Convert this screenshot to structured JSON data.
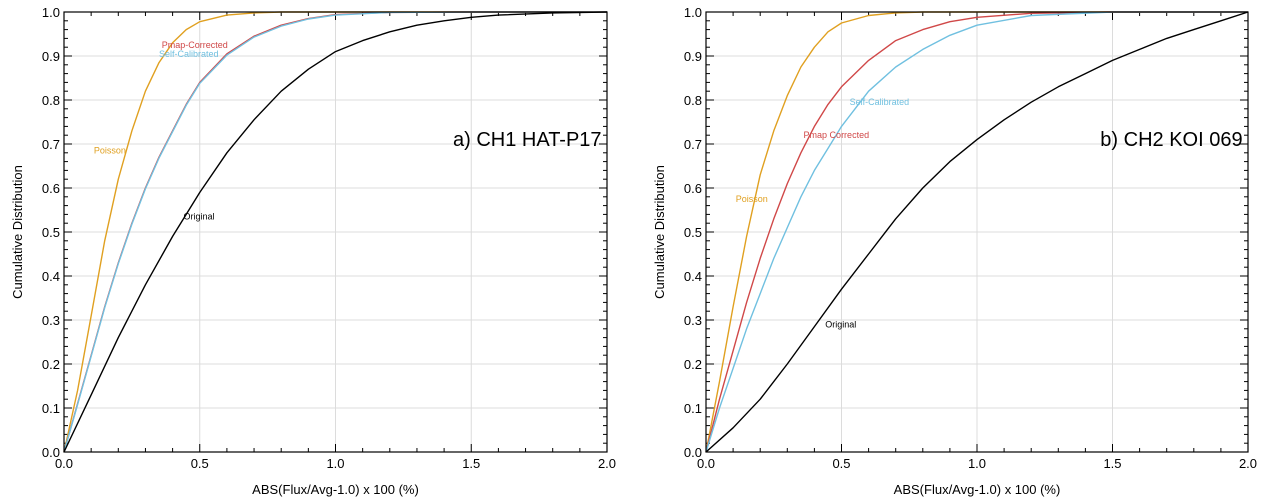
{
  "chart_data": [
    {
      "type": "line",
      "panel_label": "a) CH1 HAT-P17",
      "xlabel": "ABS(Flux/Avg-1.0) x 100 (%)",
      "ylabel": "Cumulative Distribution",
      "xlim": [
        0.0,
        2.0
      ],
      "ylim": [
        0.0,
        1.0
      ],
      "xticks": [
        "0.0",
        "0.5",
        "1.0",
        "1.5",
        "2.0"
      ],
      "yticks": [
        "0.0",
        "0.1",
        "0.2",
        "0.3",
        "0.4",
        "0.5",
        "0.6",
        "0.7",
        "0.8",
        "0.9",
        "1.0"
      ],
      "grid": true,
      "series": [
        {
          "name": "Poisson",
          "color": "#e0a020",
          "x": [
            0,
            0.05,
            0.1,
            0.15,
            0.2,
            0.25,
            0.3,
            0.35,
            0.4,
            0.45,
            0.5,
            0.6,
            0.7,
            0.8,
            0.9,
            1.0,
            2.0
          ],
          "y": [
            0,
            0.14,
            0.31,
            0.48,
            0.62,
            0.73,
            0.82,
            0.885,
            0.93,
            0.96,
            0.978,
            0.993,
            0.998,
            1.0,
            1.0,
            1.0,
            1.0
          ],
          "label_at": [
            0.11,
            0.685
          ]
        },
        {
          "name": "Pmap-Corrected",
          "color": "#d04848",
          "x": [
            0,
            0.05,
            0.1,
            0.15,
            0.2,
            0.25,
            0.3,
            0.35,
            0.4,
            0.45,
            0.5,
            0.6,
            0.7,
            0.8,
            0.9,
            1.0,
            1.2,
            1.5,
            2.0
          ],
          "y": [
            0,
            0.11,
            0.22,
            0.33,
            0.43,
            0.52,
            0.6,
            0.67,
            0.73,
            0.79,
            0.84,
            0.905,
            0.945,
            0.97,
            0.985,
            0.994,
            0.999,
            1.0,
            1.0
          ],
          "label_at": [
            0.36,
            0.925
          ]
        },
        {
          "name": "Self-Calibrated",
          "color": "#70c0e0",
          "x": [
            0,
            0.05,
            0.1,
            0.15,
            0.2,
            0.25,
            0.3,
            0.35,
            0.4,
            0.45,
            0.5,
            0.6,
            0.7,
            0.8,
            0.9,
            1.0,
            1.2,
            1.5,
            2.0
          ],
          "y": [
            0,
            0.108,
            0.218,
            0.328,
            0.428,
            0.518,
            0.598,
            0.668,
            0.728,
            0.788,
            0.838,
            0.902,
            0.943,
            0.968,
            0.984,
            0.993,
            0.999,
            1.0,
            1.0
          ],
          "label_at": [
            0.35,
            0.905
          ]
        },
        {
          "name": "Original",
          "color": "#000000",
          "x": [
            0,
            0.1,
            0.2,
            0.3,
            0.4,
            0.5,
            0.6,
            0.7,
            0.8,
            0.9,
            1.0,
            1.1,
            1.2,
            1.3,
            1.4,
            1.5,
            1.6,
            1.8,
            2.0
          ],
          "y": [
            0,
            0.13,
            0.26,
            0.38,
            0.49,
            0.59,
            0.68,
            0.755,
            0.82,
            0.87,
            0.91,
            0.935,
            0.955,
            0.97,
            0.98,
            0.988,
            0.993,
            0.998,
            1.0
          ],
          "label_at": [
            0.44,
            0.535
          ]
        }
      ]
    },
    {
      "type": "line",
      "panel_label": "b) CH2 KOI 069",
      "xlabel": "ABS(Flux/Avg-1.0) x 100 (%)",
      "ylabel": "Cumulative Distribution",
      "xlim": [
        0.0,
        2.0
      ],
      "ylim": [
        0.0,
        1.0
      ],
      "xticks": [
        "0.0",
        "0.5",
        "1.0",
        "1.5",
        "2.0"
      ],
      "yticks": [
        "0.0",
        "0.1",
        "0.2",
        "0.3",
        "0.4",
        "0.5",
        "0.6",
        "0.7",
        "0.8",
        "0.9",
        "1.0"
      ],
      "grid": true,
      "series": [
        {
          "name": "Poisson",
          "color": "#e0a020",
          "x": [
            0,
            0.05,
            0.1,
            0.15,
            0.2,
            0.25,
            0.3,
            0.35,
            0.4,
            0.45,
            0.5,
            0.6,
            0.7,
            0.8,
            0.9,
            1.0,
            2.0
          ],
          "y": [
            0,
            0.16,
            0.33,
            0.49,
            0.63,
            0.73,
            0.81,
            0.875,
            0.92,
            0.955,
            0.975,
            0.992,
            0.998,
            1.0,
            1.0,
            1.0,
            1.0
          ],
          "label_at": [
            0.11,
            0.575
          ]
        },
        {
          "name": "Pmap Corrected",
          "color": "#d04848",
          "x": [
            0,
            0.05,
            0.1,
            0.15,
            0.2,
            0.25,
            0.3,
            0.35,
            0.4,
            0.45,
            0.5,
            0.6,
            0.7,
            0.8,
            0.9,
            1.0,
            1.2,
            1.5,
            2.0
          ],
          "y": [
            0,
            0.12,
            0.23,
            0.34,
            0.44,
            0.53,
            0.61,
            0.68,
            0.74,
            0.79,
            0.83,
            0.89,
            0.935,
            0.96,
            0.978,
            0.988,
            0.997,
            1.0,
            1.0
          ],
          "label_at": [
            0.36,
            0.72
          ]
        },
        {
          "name": "Self-Calibrated",
          "color": "#70c0e0",
          "x": [
            0,
            0.05,
            0.1,
            0.15,
            0.2,
            0.25,
            0.3,
            0.35,
            0.4,
            0.45,
            0.5,
            0.6,
            0.7,
            0.8,
            0.9,
            1.0,
            1.2,
            1.5,
            2.0
          ],
          "y": [
            0,
            0.1,
            0.19,
            0.28,
            0.36,
            0.44,
            0.51,
            0.58,
            0.64,
            0.69,
            0.74,
            0.82,
            0.875,
            0.915,
            0.947,
            0.97,
            0.992,
            1.0,
            1.0
          ],
          "label_at": [
            0.53,
            0.795
          ]
        },
        {
          "name": "Original",
          "color": "#000000",
          "x": [
            0,
            0.1,
            0.2,
            0.3,
            0.4,
            0.5,
            0.6,
            0.7,
            0.8,
            0.9,
            1.0,
            1.1,
            1.2,
            1.3,
            1.4,
            1.5,
            1.6,
            1.7,
            1.8,
            1.9,
            2.0
          ],
          "y": [
            0,
            0.055,
            0.12,
            0.2,
            0.285,
            0.37,
            0.45,
            0.53,
            0.6,
            0.66,
            0.71,
            0.755,
            0.795,
            0.83,
            0.86,
            0.89,
            0.915,
            0.94,
            0.96,
            0.98,
            1.0
          ],
          "label_at": [
            0.44,
            0.29
          ]
        }
      ]
    }
  ]
}
